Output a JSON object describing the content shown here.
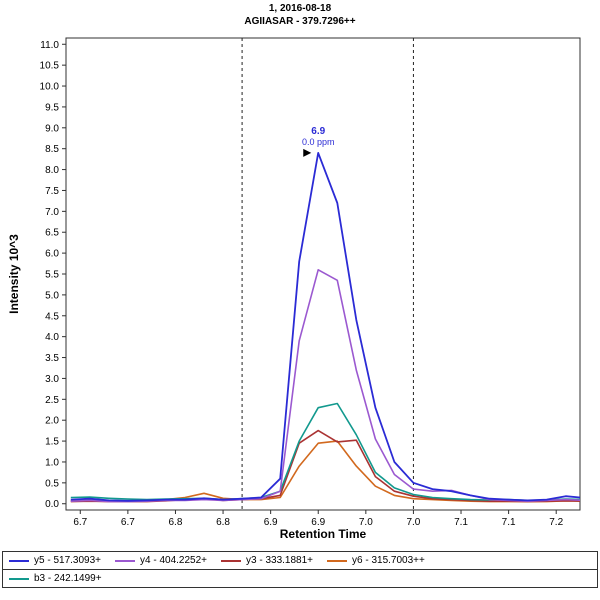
{
  "title": {
    "line1": "1, 2016-08-18",
    "line2": "AGIIASAR - 379.7296++"
  },
  "axes": {
    "x_label": "Retention Time",
    "y_label": "Intensity 10^3",
    "x_ticks": [
      {
        "v": 6.7,
        "label": "6.7"
      },
      {
        "v": 6.75,
        "label": "6.7"
      },
      {
        "v": 6.8,
        "label": "6.8"
      },
      {
        "v": 6.85,
        "label": "6.8"
      },
      {
        "v": 6.9,
        "label": "6.9"
      },
      {
        "v": 6.95,
        "label": "6.9"
      },
      {
        "v": 7.0,
        "label": "7.0"
      },
      {
        "v": 7.05,
        "label": "7.0"
      },
      {
        "v": 7.1,
        "label": "7.1"
      },
      {
        "v": 7.15,
        "label": "7.1"
      },
      {
        "v": 7.2,
        "label": "7.2"
      }
    ],
    "y_tick_labels": [
      "0.0",
      "0.5",
      "1.0",
      "1.5",
      "2.0",
      "2.5",
      "3.0",
      "3.5",
      "4.0",
      "4.5",
      "5.0",
      "5.5",
      "6.0",
      "6.5",
      "7.0",
      "7.5",
      "8.0",
      "8.5",
      "9.0",
      "9.5",
      "10.0",
      "10.5",
      "11.0"
    ]
  },
  "chart_data": {
    "type": "line",
    "title": "1, 2016-08-18 / AGIIASAR - 379.7296++",
    "xlabel": "Retention Time",
    "ylabel": "Intensity 10^3",
    "xlim": [
      6.685,
      7.225
    ],
    "ylim": [
      -0.15,
      11.15
    ],
    "grid": false,
    "legend_position": "bottom",
    "x": [
      6.69,
      6.71,
      6.73,
      6.75,
      6.77,
      6.79,
      6.81,
      6.83,
      6.85,
      6.87,
      6.89,
      6.91,
      6.93,
      6.95,
      6.97,
      6.99,
      7.01,
      7.03,
      7.05,
      7.07,
      7.09,
      7.11,
      7.13,
      7.15,
      7.17,
      7.19,
      7.21,
      7.23
    ],
    "series": [
      {
        "name": "y5 - 517.3093+",
        "color": "#2b2bd5",
        "values": [
          0.1,
          0.12,
          0.08,
          0.07,
          0.08,
          0.1,
          0.1,
          0.13,
          0.1,
          0.12,
          0.15,
          0.6,
          5.8,
          8.4,
          7.2,
          4.4,
          2.3,
          1.0,
          0.5,
          0.35,
          0.3,
          0.2,
          0.12,
          0.1,
          0.08,
          0.1,
          0.18,
          0.14
        ]
      },
      {
        "name": "y4 - 404.2252+",
        "color": "#9b59d0",
        "values": [
          0.06,
          0.08,
          0.05,
          0.05,
          0.06,
          0.08,
          0.08,
          0.1,
          0.08,
          0.1,
          0.12,
          0.3,
          3.9,
          5.6,
          5.35,
          3.2,
          1.55,
          0.7,
          0.35,
          0.3,
          0.32,
          0.2,
          0.1,
          0.08,
          0.06,
          0.08,
          0.1,
          0.08
        ]
      },
      {
        "name": "y3 - 333.1881+",
        "color": "#aa3333",
        "values": [
          0.05,
          0.06,
          0.05,
          0.05,
          0.05,
          0.07,
          0.1,
          0.12,
          0.08,
          0.1,
          0.12,
          0.2,
          1.45,
          1.75,
          1.48,
          1.52,
          0.65,
          0.3,
          0.18,
          0.12,
          0.1,
          0.08,
          0.06,
          0.06,
          0.05,
          0.06,
          0.07,
          0.06
        ]
      },
      {
        "name": "y6 - 315.7003++",
        "color": "#d2691e",
        "values": [
          0.07,
          0.08,
          0.06,
          0.06,
          0.08,
          0.1,
          0.15,
          0.25,
          0.13,
          0.1,
          0.1,
          0.15,
          0.9,
          1.45,
          1.5,
          0.9,
          0.42,
          0.2,
          0.12,
          0.1,
          0.08,
          0.06,
          0.05,
          0.05,
          0.05,
          0.05,
          0.07,
          0.06
        ]
      },
      {
        "name": "b3 - 242.1499+",
        "color": "#12998e",
        "values": [
          0.15,
          0.16,
          0.13,
          0.11,
          0.1,
          0.11,
          0.12,
          0.13,
          0.1,
          0.12,
          0.15,
          0.3,
          1.5,
          2.3,
          2.4,
          1.65,
          0.75,
          0.38,
          0.22,
          0.15,
          0.12,
          0.1,
          0.09,
          0.1,
          0.08,
          0.09,
          0.11,
          0.1
        ]
      }
    ],
    "peak_boundaries": [
      6.87,
      7.05
    ],
    "annotation": {
      "x": 6.95,
      "y": 8.4,
      "rt": "6.9",
      "ppm": "0.0 ppm"
    }
  }
}
